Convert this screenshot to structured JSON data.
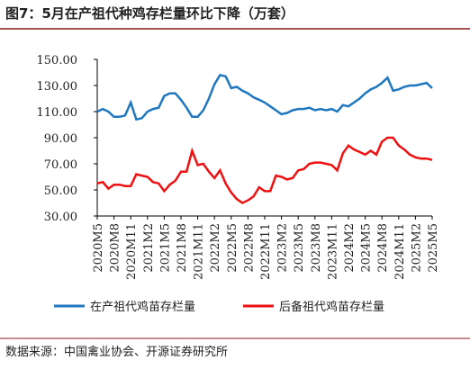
{
  "chart_data": {
    "type": "line",
    "title": "图7：5月在产祖代种鸡存栏量环比下降（万套）",
    "source": "数据来源：中国禽业协会、开源证券研究所",
    "categories": [
      "2020M5",
      null,
      null,
      "2020M8",
      null,
      null,
      "2020M11",
      null,
      null,
      "2021M2",
      null,
      null,
      "2021M5",
      null,
      null,
      "2021M8",
      null,
      null,
      "2021M11",
      null,
      null,
      "2022M2",
      null,
      null,
      "2022M5",
      null,
      null,
      "2022M8",
      null,
      null,
      "2022M11",
      null,
      null,
      "2023M2",
      null,
      null,
      "2023M5",
      null,
      null,
      "2023M8",
      null,
      null,
      "2023M11",
      null,
      null,
      "2024M2",
      null,
      null,
      "2024M5",
      null,
      null,
      "2024M8",
      null,
      null,
      "2024M11",
      null,
      null,
      "2025M2",
      null,
      null,
      "2025M5"
    ],
    "series": [
      {
        "name": "在产祖代鸡苗存栏量",
        "color": "#1f77c0",
        "values": [
          110,
          112,
          110,
          106,
          106,
          107,
          117,
          104,
          105,
          110,
          112,
          113,
          122,
          124,
          124,
          119,
          113,
          106,
          106,
          111,
          120,
          131,
          138,
          137,
          128,
          129,
          126,
          124,
          121,
          119,
          117,
          114,
          111,
          108,
          109,
          111,
          112,
          112,
          113,
          111,
          112,
          111,
          112,
          110,
          115,
          114,
          117,
          120,
          124,
          127,
          129,
          132,
          136,
          126,
          127,
          129,
          130,
          130,
          131,
          132,
          128
        ]
      },
      {
        "name": "后备祖代鸡苗存栏量",
        "color": "#ee1111",
        "values": [
          55,
          56,
          51,
          54,
          54,
          53,
          53,
          62,
          61,
          60,
          56,
          55,
          49,
          54,
          57,
          64,
          64,
          80,
          69,
          70,
          64,
          59,
          65,
          55,
          48,
          43,
          40,
          42,
          45,
          52,
          49,
          49,
          61,
          60,
          58,
          59,
          65,
          66,
          70,
          71,
          71,
          70,
          69,
          65,
          78,
          84,
          81,
          79,
          77,
          80,
          77,
          87,
          90,
          90,
          84,
          81,
          77,
          75,
          74,
          74,
          73
        ]
      }
    ],
    "ylim": [
      30,
      150
    ],
    "yticks": [
      {
        "value": 30,
        "label": "30.00"
      },
      {
        "value": 50,
        "label": "50.00"
      },
      {
        "value": 70,
        "label": "70.00"
      },
      {
        "value": 90,
        "label": "90.00"
      },
      {
        "value": 110,
        "label": "110.00"
      },
      {
        "value": 130,
        "label": "130.00"
      },
      {
        "value": 150,
        "label": "150.00"
      }
    ],
    "legend": "bottom"
  }
}
